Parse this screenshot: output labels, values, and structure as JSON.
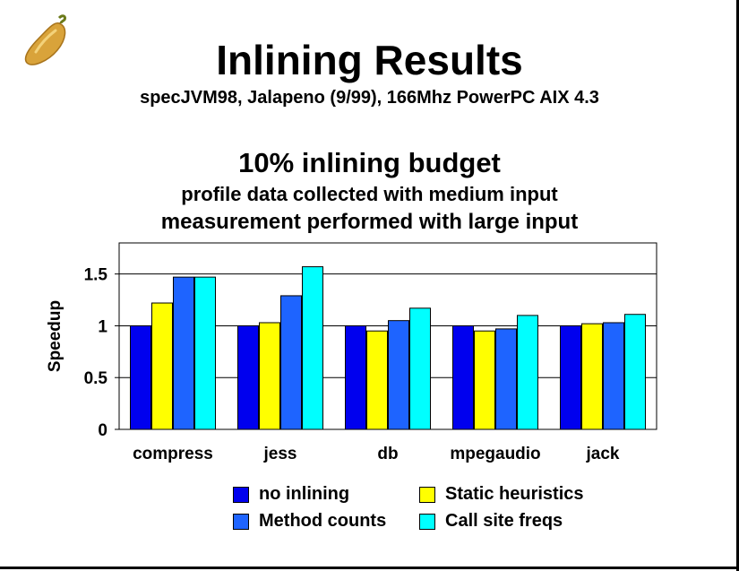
{
  "slide": {
    "title": "Inlining Results",
    "subtitle": "specJVM98, Jalapeno (9/99), 166Mhz PowerPC AIX 4.3",
    "heading": "10% inlining budget",
    "line1": "profile data collected with medium input",
    "line2": "measurement performed with large input",
    "logo_icon": "jalapeno-pepper-icon"
  },
  "chart_data": {
    "type": "bar",
    "ylabel": "Speedup",
    "xlabel": "",
    "ylim": [
      0,
      1.8
    ],
    "yticks": [
      0,
      0.5,
      1,
      1.5
    ],
    "ytick_labels": [
      "0",
      "0.5",
      "1",
      "1.5"
    ],
    "grid": true,
    "legend_placement": "bottom",
    "categories": [
      "compress",
      "jess",
      "db",
      "mpegaudio",
      "jack"
    ],
    "series": [
      {
        "name": "no inlining",
        "color": "#0000ee",
        "values": [
          1.0,
          1.0,
          1.0,
          1.0,
          1.0
        ]
      },
      {
        "name": "Static heuristics",
        "color": "#ffff00",
        "values": [
          1.22,
          1.03,
          0.95,
          0.95,
          1.02
        ]
      },
      {
        "name": "Method counts",
        "color": "#1e64ff",
        "values": [
          1.47,
          1.29,
          1.05,
          0.97,
          1.03
        ]
      },
      {
        "name": "Call site freqs",
        "color": "#00ffff",
        "values": [
          1.47,
          1.57,
          1.17,
          1.1,
          1.11
        ]
      }
    ]
  }
}
